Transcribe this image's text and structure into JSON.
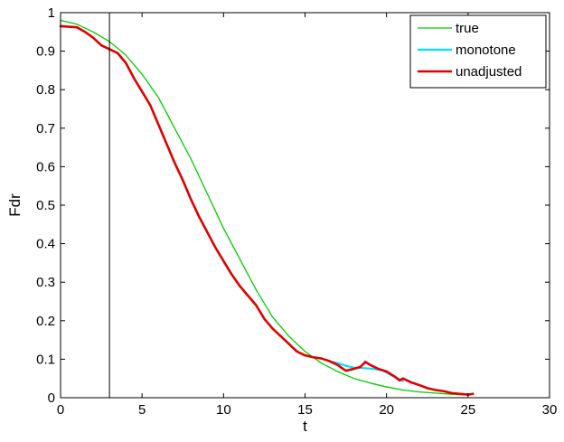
{
  "chart_data": {
    "type": "line",
    "xlabel": "t",
    "ylabel": "Fdr",
    "xlim": [
      0,
      30
    ],
    "ylim": [
      0,
      1
    ],
    "xticks": [
      "0",
      "5",
      "10",
      "15",
      "20",
      "25",
      "30"
    ],
    "yticks": [
      "0",
      "0.1",
      "0.2",
      "0.3",
      "0.4",
      "0.5",
      "0.6",
      "0.7",
      "0.8",
      "0.9",
      "1"
    ],
    "grid": false,
    "legend_position": "top-right",
    "vertical_line_x": 3,
    "series": [
      {
        "name": "true",
        "color": "#00cc00",
        "points": [
          [
            0,
            0.98
          ],
          [
            1,
            0.97
          ],
          [
            2,
            0.95
          ],
          [
            3,
            0.925
          ],
          [
            4,
            0.89
          ],
          [
            5,
            0.84
          ],
          [
            6,
            0.78
          ],
          [
            7,
            0.7
          ],
          [
            8,
            0.62
          ],
          [
            9,
            0.53
          ],
          [
            10,
            0.44
          ],
          [
            11,
            0.36
          ],
          [
            12,
            0.28
          ],
          [
            13,
            0.21
          ],
          [
            14,
            0.16
          ],
          [
            15,
            0.12
          ],
          [
            16,
            0.09
          ],
          [
            17,
            0.068
          ],
          [
            18,
            0.05
          ],
          [
            19,
            0.038
          ],
          [
            20,
            0.028
          ],
          [
            21,
            0.02
          ],
          [
            22,
            0.015
          ],
          [
            23,
            0.012
          ],
          [
            24,
            0.009
          ],
          [
            25,
            0.007
          ]
        ]
      },
      {
        "name": "monotone",
        "color": "#00e0ff",
        "points": [
          [
            16.5,
            0.095
          ],
          [
            17,
            0.09
          ],
          [
            17.5,
            0.083
          ],
          [
            18,
            0.078
          ],
          [
            18.6,
            0.077
          ],
          [
            19.2,
            0.075
          ],
          [
            19.8,
            0.07
          ],
          [
            20.3,
            0.058
          ],
          [
            21,
            0.043
          ]
        ]
      },
      {
        "name": "unadjusted",
        "color": "#e00000",
        "points": [
          [
            0,
            0.965
          ],
          [
            1,
            0.962
          ],
          [
            1.5,
            0.95
          ],
          [
            2,
            0.935
          ],
          [
            2.5,
            0.915
          ],
          [
            3,
            0.905
          ],
          [
            3.5,
            0.895
          ],
          [
            4,
            0.87
          ],
          [
            4.5,
            0.83
          ],
          [
            5,
            0.795
          ],
          [
            5.5,
            0.76
          ],
          [
            6,
            0.71
          ],
          [
            6.5,
            0.66
          ],
          [
            7,
            0.61
          ],
          [
            7.5,
            0.565
          ],
          [
            8,
            0.515
          ],
          [
            8.5,
            0.47
          ],
          [
            9,
            0.43
          ],
          [
            9.5,
            0.39
          ],
          [
            10,
            0.355
          ],
          [
            10.5,
            0.32
          ],
          [
            11,
            0.29
          ],
          [
            11.5,
            0.265
          ],
          [
            12,
            0.24
          ],
          [
            12.5,
            0.205
          ],
          [
            13,
            0.18
          ],
          [
            13.5,
            0.16
          ],
          [
            14,
            0.14
          ],
          [
            14.5,
            0.12
          ],
          [
            15,
            0.11
          ],
          [
            15.5,
            0.105
          ],
          [
            16,
            0.102
          ],
          [
            16.5,
            0.095
          ],
          [
            17,
            0.085
          ],
          [
            17.5,
            0.07
          ],
          [
            18,
            0.075
          ],
          [
            18.4,
            0.08
          ],
          [
            18.7,
            0.093
          ],
          [
            19,
            0.085
          ],
          [
            19.5,
            0.075
          ],
          [
            20,
            0.068
          ],
          [
            20.5,
            0.055
          ],
          [
            20.8,
            0.045
          ],
          [
            21,
            0.05
          ],
          [
            21.5,
            0.04
          ],
          [
            22,
            0.033
          ],
          [
            22.5,
            0.025
          ],
          [
            23,
            0.02
          ],
          [
            23.5,
            0.017
          ],
          [
            24,
            0.012
          ],
          [
            24.5,
            0.01
          ],
          [
            25,
            0.008
          ],
          [
            25.3,
            0.01
          ]
        ]
      }
    ]
  }
}
